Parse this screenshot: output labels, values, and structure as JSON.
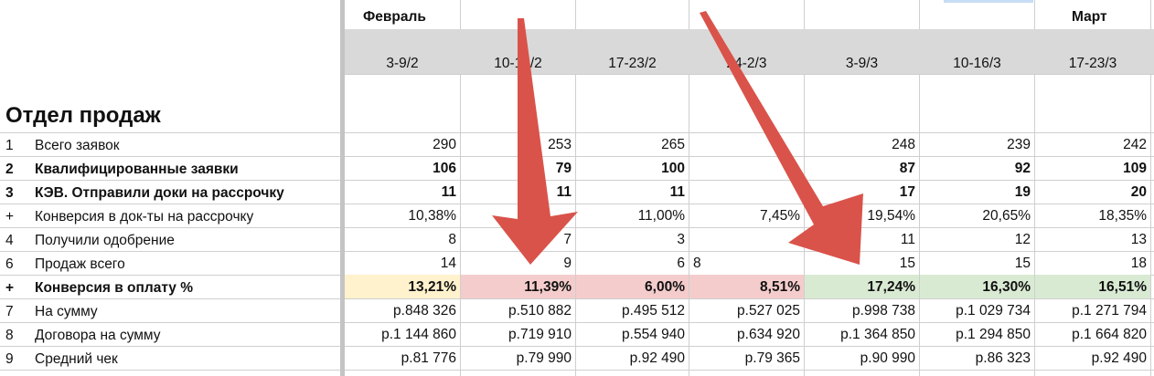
{
  "title": "Отдел продаж",
  "months": [
    {
      "label": "Февраль"
    },
    {
      "label": "Март"
    }
  ],
  "weeks": [
    "3-9/2",
    "10-16/2",
    "17-23/2",
    "24-2/3",
    "3-9/3",
    "10-16/3",
    "17-23/3"
  ],
  "rows": [
    {
      "num": "1",
      "label": "Всего заявок",
      "bold": false,
      "values": [
        "290",
        "253",
        "265",
        "",
        "248",
        "239",
        "242"
      ]
    },
    {
      "num": "2",
      "label": "Квалифицированные заявки",
      "bold": true,
      "values": [
        "106",
        "79",
        "100",
        "",
        "87",
        "92",
        "109"
      ]
    },
    {
      "num": "3",
      "label": "КЭВ. Отправили доки на рассрочку",
      "bold": true,
      "values": [
        "11",
        "11",
        "11",
        "",
        "17",
        "19",
        "20"
      ]
    },
    {
      "num": "+",
      "label": "Конверсия в док-ты на рассрочку",
      "bold": false,
      "values": [
        "10,38%",
        "",
        "11,00%",
        "7,45%",
        "19,54%",
        "20,65%",
        "18,35%"
      ]
    },
    {
      "num": "4",
      "label": "Получили одобрение",
      "bold": false,
      "values": [
        "8",
        "7",
        "3",
        "",
        "11",
        "12",
        "13"
      ]
    },
    {
      "num": "6",
      "label": "Продаж всего",
      "bold": false,
      "values": [
        "14",
        "9",
        "6",
        "8",
        "15",
        "15",
        "18"
      ]
    },
    {
      "num": "+",
      "label": "Конверсия в оплату %",
      "bold": true,
      "values": [
        "13,21%",
        "11,39%",
        "6,00%",
        "8,51%",
        "17,24%",
        "16,30%",
        "16,51%"
      ]
    },
    {
      "num": "7",
      "label": "На сумму",
      "bold": false,
      "values": [
        "р.848 326",
        "р.510 882",
        "р.495 512",
        "р.527 025",
        "р.998 738",
        "р.1 029 734",
        "р.1 271 794"
      ]
    },
    {
      "num": "8",
      "label": "Договора на сумму",
      "bold": false,
      "values": [
        "р.1 144 860",
        "р.719 910",
        "р.554 940",
        "р.634 920",
        "р.1 364 850",
        "р.1 294 850",
        "р.1 664 820"
      ]
    },
    {
      "num": "9",
      "label": "Средний чек",
      "bold": false,
      "values": [
        "р.81 776",
        "р.79 990",
        "р.92 490",
        "р.79 365",
        "р.90 990",
        "р.86 323",
        "р.92 490"
      ]
    }
  ],
  "conversion_fills": [
    "#fff2cc",
    "#f4cccc",
    "#f4cccc",
    "#f4cccc",
    "#d9ead3",
    "#d9ead3",
    "#d9ead3"
  ],
  "colors": {
    "header_gray": "#d9d9d9",
    "arrow": "#d9534a"
  }
}
